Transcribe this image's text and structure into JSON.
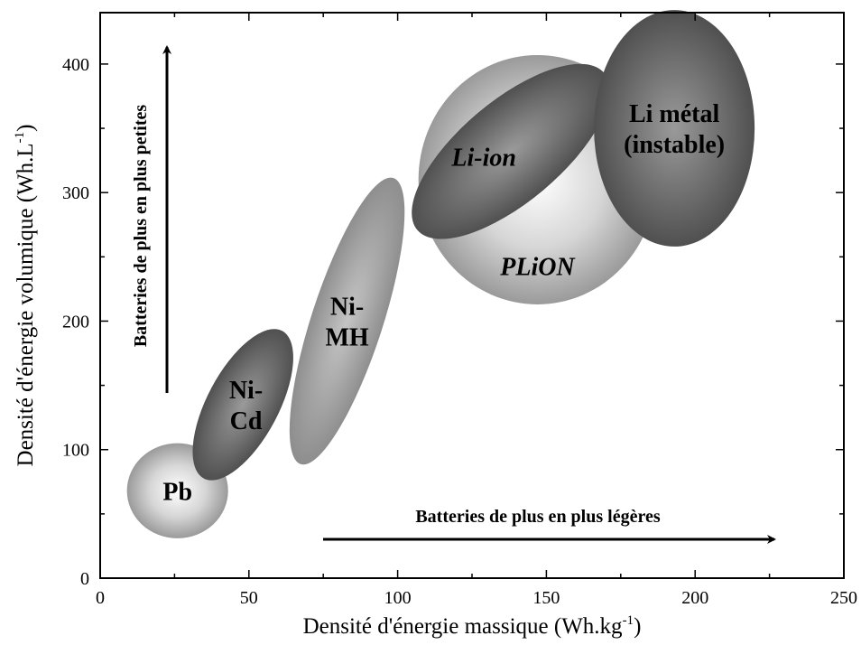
{
  "chart_data": {
    "type": "scatter",
    "title": "",
    "xlabel": "Densité d'énergie massique (Wh.kg",
    "xlabel_sup": "-1",
    "xlabel_end": ")",
    "ylabel": "Densité d'énergie volumique (Wh.L",
    "ylabel_sup": "-1",
    "ylabel_end": ")",
    "xlim": [
      0,
      250
    ],
    "ylim": [
      0,
      440
    ],
    "xticks": [
      0,
      50,
      100,
      150,
      200,
      250
    ],
    "yticks": [
      0,
      100,
      200,
      300,
      400
    ],
    "grid": false,
    "regions": [
      {
        "id": "pb",
        "label_lines": [
          "Pb"
        ],
        "cx": 26,
        "cy": 68,
        "rx": 17,
        "ry": 37,
        "angle": 0,
        "fill": "light",
        "italic": false
      },
      {
        "id": "nicd",
        "label_lines": [
          "Ni-",
          "Cd"
        ],
        "cx": 48,
        "cy": 135,
        "rx": 12,
        "ry": 65,
        "angle": 28,
        "fill": "dark",
        "italic": false
      },
      {
        "id": "nimh",
        "label_lines": [
          "Ni-",
          "MH"
        ],
        "cx": 83,
        "cy": 200,
        "rx": 12,
        "ry": 117,
        "angle": 18,
        "fill": "mid",
        "italic": false
      },
      {
        "id": "plion",
        "label_lines": [
          "PLiON"
        ],
        "cx": 147,
        "cy": 310,
        "rx": 40,
        "ry": 97,
        "angle": 0,
        "fill": "light",
        "italic": true
      },
      {
        "id": "liion",
        "label_lines": [
          "Li-ion"
        ],
        "cx": 138,
        "cy": 332,
        "rx": 17,
        "ry": 95,
        "angle": 50,
        "fill": "dark",
        "italic": true
      },
      {
        "id": "limetal",
        "label_lines": [
          "Li métal",
          "(instable)"
        ],
        "cx": 193,
        "cy": 350,
        "rx": 27,
        "ry": 92,
        "angle": 0,
        "fill": "dark",
        "italic": false
      }
    ],
    "annotations": [
      {
        "id": "arrow-x",
        "text": "Batteries de plus en plus légères",
        "direction": "right"
      },
      {
        "id": "arrow-y",
        "text": "Batteries de plus en plus petites",
        "direction": "up"
      }
    ]
  }
}
